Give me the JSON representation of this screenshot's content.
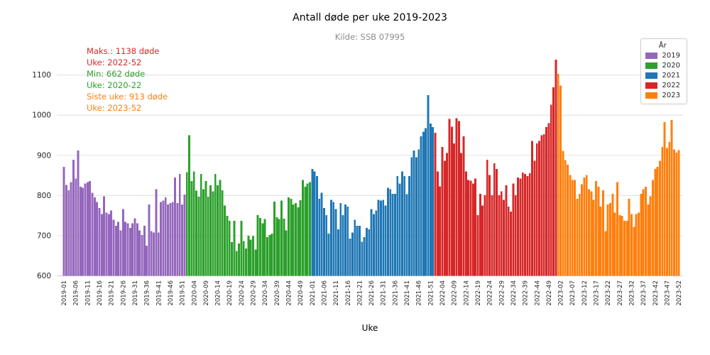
{
  "chart_data": {
    "type": "bar",
    "title": "Antall døde per uke 2019-2023",
    "subtitle": "Kilde: SSB 07995",
    "xlabel": "Uke",
    "ylabel": "",
    "ylim": [
      600,
      1160
    ],
    "yticks": [
      600,
      700,
      800,
      900,
      1000,
      1100
    ],
    "grid": true,
    "legend_position": "upper right",
    "x_tick_every": 5,
    "series": [
      {
        "name": "2019",
        "color": "#9467bd",
        "values": [
          871,
          826,
          813,
          833,
          889,
          842,
          912,
          822,
          819,
          830,
          833,
          836,
          807,
          795,
          784,
          769,
          754,
          798,
          757,
          754,
          763,
          740,
          725,
          734,
          713,
          766,
          734,
          731,
          719,
          731,
          743,
          731,
          713,
          702,
          725,
          675,
          778,
          711,
          708,
          816,
          708,
          784,
          787,
          795,
          778,
          781,
          784,
          845,
          781,
          854,
          778,
          802
        ]
      },
      {
        "name": "2020",
        "color": "#2ca02c",
        "values": [
          858,
          950,
          836,
          860,
          812,
          797,
          854,
          816,
          836,
          797,
          825,
          810,
          854,
          825,
          839,
          813,
          775,
          749,
          737,
          684,
          737,
          662,
          680,
          737,
          687,
          668,
          700,
          690,
          699,
          665,
          751,
          744,
          731,
          741,
          696,
          702,
          705,
          785,
          746,
          741,
          787,
          742,
          713,
          795,
          792,
          778,
          781,
          771,
          788,
          839,
          822,
          830,
          833
        ]
      },
      {
        "name": "2021",
        "color": "#1f77b4",
        "values": [
          866,
          860,
          848,
          792,
          807,
          769,
          751,
          705,
          789,
          784,
          766,
          716,
          781,
          751,
          778,
          772,
          693,
          708,
          740,
          725,
          725,
          685,
          696,
          719,
          716,
          766,
          754,
          763,
          789,
          787,
          789,
          775,
          819,
          816,
          804,
          804,
          848,
          830,
          860,
          848,
          803,
          848,
          895,
          912,
          895,
          915,
          947,
          959,
          968,
          1050,
          979,
          970
        ]
      },
      {
        "name": "2022",
        "color": "#d62728",
        "values": [
          956,
          860,
          823,
          921,
          886,
          906,
          991,
          971,
          930,
          992,
          985,
          906,
          947,
          860,
          839,
          837,
          830,
          842,
          751,
          804,
          775,
          801,
          889,
          851,
          801,
          880,
          866,
          801,
          810,
          789,
          825,
          772,
          760,
          830,
          801,
          845,
          842,
          857,
          854,
          848,
          855,
          936,
          886,
          930,
          936,
          950,
          953,
          970,
          980,
          1026,
          1069,
          1138
        ]
      },
      {
        "name": "2023",
        "color": "#ff7f0e",
        "values": [
          1103,
          1074,
          911,
          888,
          877,
          851,
          839,
          839,
          792,
          804,
          828,
          845,
          851,
          816,
          810,
          789,
          836,
          822,
          772,
          813,
          711,
          778,
          781,
          804,
          757,
          833,
          751,
          749,
          737,
          737,
          792,
          754,
          722,
          754,
          757,
          804,
          816,
          822,
          778,
          798,
          839,
          866,
          871,
          886,
          921,
          983,
          918,
          933,
          988,
          915,
          907,
          913
        ]
      }
    ]
  },
  "legend": {
    "title": "År",
    "items": [
      {
        "label": "2019",
        "color": "#9467bd"
      },
      {
        "label": "2020",
        "color": "#2ca02c"
      },
      {
        "label": "2021",
        "color": "#1f77b4"
      },
      {
        "label": "2022",
        "color": "#d62728"
      },
      {
        "label": "2023",
        "color": "#ff7f0e"
      }
    ]
  },
  "annotations": {
    "max": {
      "line1": "Maks.: 1138 døde",
      "line2": "Uke: 2022-52",
      "color": "#d62728"
    },
    "min": {
      "line1": "Min: 662 døde",
      "line2": "Uke: 2020-22",
      "color": "#2ca02c"
    },
    "last": {
      "line1": "Siste uke: 913 døde",
      "line2": "Uke: 2023-52",
      "color": "#ff7f0e"
    }
  },
  "axis_colors": {
    "grid": "#e5e5e5",
    "baseline": "#d6d6d6",
    "tick_label": "#262626"
  }
}
